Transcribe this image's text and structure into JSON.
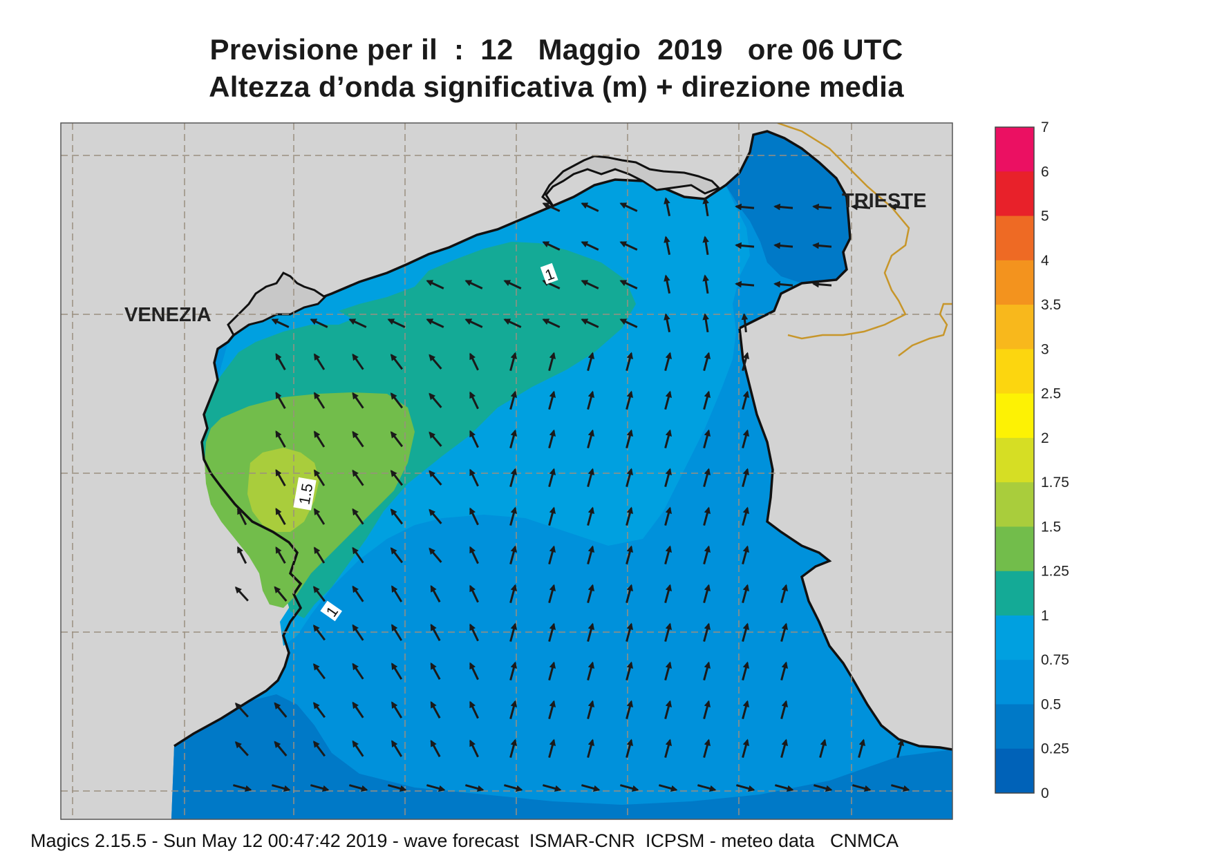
{
  "title_line1": "Previsione per il  :  12   Maggio  2019   ore 06 UTC",
  "title_line2": "Altezza d’onda significativa (m) + direzione media",
  "cities": [
    "VENEZIA",
    "TRIESTE"
  ],
  "contour_labels": [
    "1",
    "1.5",
    "1"
  ],
  "legend": {
    "ticks": [
      "7",
      "6",
      "5",
      "4",
      "3.5",
      "3",
      "2.5",
      "2",
      "1.75",
      "1.5",
      "1.25",
      "1",
      "0.75",
      "0.5",
      "0.25",
      "0"
    ],
    "colors": [
      "#eb1062",
      "#e8212a",
      "#ee6a24",
      "#f3931e",
      "#f8b81c",
      "#fcd60f",
      "#fdf204",
      "#d6de24",
      "#a9cd3c",
      "#72bd4b",
      "#14aa96",
      "#00a0e0",
      "#0091db",
      "#0079c7",
      "#0062b8"
    ]
  },
  "colors": {
    "land": "#d3d3d3",
    "coast": "#111111",
    "border": "#c7962a",
    "grid": "#9a8f80"
  },
  "footer": "Magics 2.15.5 - Sun May 12 00:47:42 2019 - wave forecast  ISMAR-CNR  ICPSM - meteo data   CNMCA"
}
